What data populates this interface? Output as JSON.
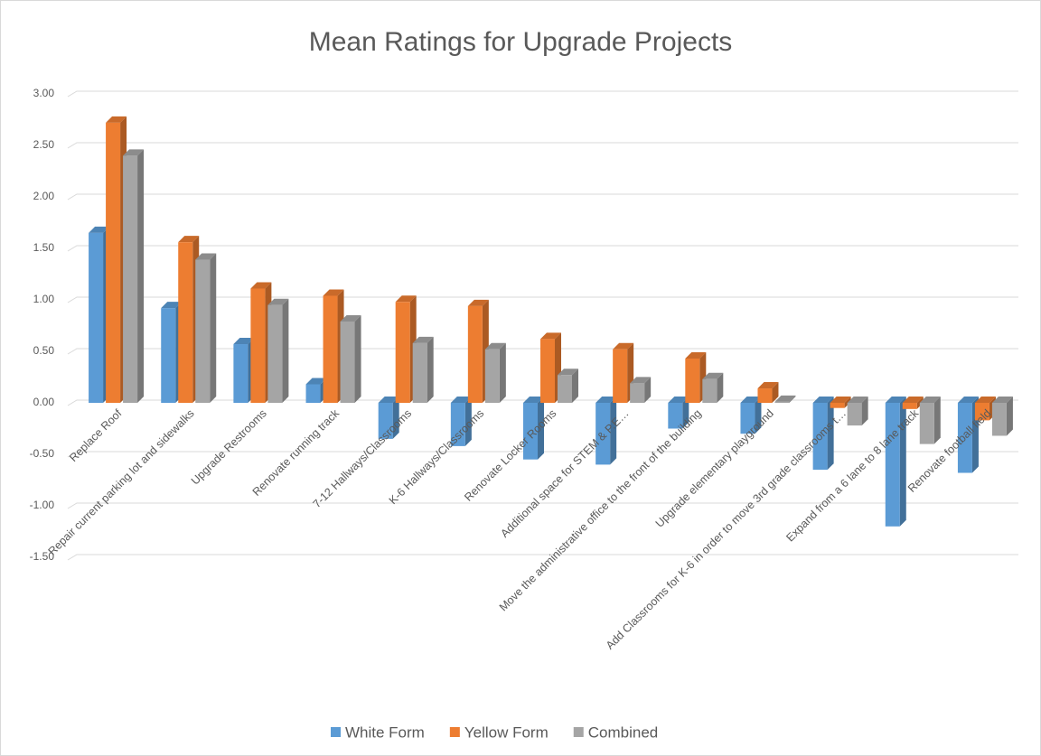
{
  "chart_data": {
    "type": "bar",
    "title": "Mean Ratings for Upgrade Projects",
    "categories": [
      "Replace Roof",
      "Repair current parking lot and sidewalks",
      "Upgrade Restrooms",
      "Renovate running track",
      "7-12 Hallways/Classrooms",
      "K-6 Hallways/Classrooms",
      "Renovate Locker Rooms",
      "Additional space for STEM & P.E…",
      "Move the administrative office to the front of the building",
      "Upgrade elementary playground",
      "Add Classrooms for K-6 in order to move 3rd grade classrooms t…",
      "Expand from a 6 lane to 8 lane track",
      "Renovate football field"
    ],
    "series": [
      {
        "name": "White Form",
        "color": "#5b9bd5",
        "values": [
          1.65,
          0.92,
          0.57,
          0.18,
          -0.35,
          -0.42,
          -0.55,
          -0.6,
          -0.25,
          -0.3,
          -0.65,
          -1.2,
          -0.68
        ]
      },
      {
        "name": "Yellow Form",
        "color": "#ed7d31",
        "values": [
          2.72,
          1.56,
          1.11,
          1.04,
          0.98,
          0.94,
          0.62,
          0.52,
          0.43,
          0.14,
          -0.05,
          -0.06,
          -0.17
        ]
      },
      {
        "name": "Combined",
        "color": "#a5a5a5",
        "values": [
          2.4,
          1.39,
          0.95,
          0.79,
          0.58,
          0.52,
          0.27,
          0.19,
          0.23,
          0.01,
          -0.22,
          -0.4,
          -0.32
        ]
      }
    ],
    "ylim": [
      -1.5,
      3.0
    ],
    "yticks": [
      {
        "value": 3.0,
        "label": "3.00"
      },
      {
        "value": 2.5,
        "label": "2.50"
      },
      {
        "value": 2.0,
        "label": "2.00"
      },
      {
        "value": 1.5,
        "label": "1.50"
      },
      {
        "value": 1.0,
        "label": "1.00"
      },
      {
        "value": 0.5,
        "label": "0.50"
      },
      {
        "value": 0.0,
        "label": "0.00"
      },
      {
        "value": -0.5,
        "label": "-0.50"
      },
      {
        "value": -1.0,
        "label": "-1.00"
      },
      {
        "value": -1.5,
        "label": "-1.50"
      }
    ],
    "grid": true,
    "legend": "bottom"
  }
}
